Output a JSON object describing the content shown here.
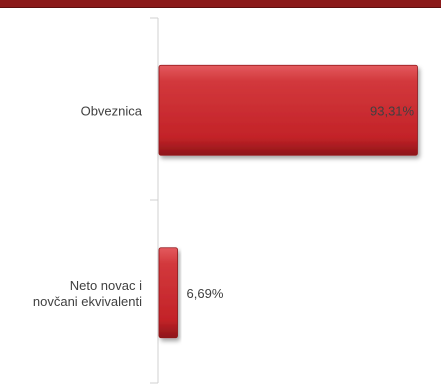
{
  "chart_data": {
    "type": "bar",
    "orientation": "horizontal",
    "categories": [
      "Obveznica",
      "Neto novac i\nnovčani ekvivalenti"
    ],
    "values": [
      93.31,
      6.69
    ],
    "value_labels": [
      "93,31%",
      "6,69%"
    ],
    "xlim": [
      0,
      100
    ],
    "grid": false,
    "legend": "none",
    "colors": {
      "bar": "#c8282d",
      "bar_light": "#e04a4e",
      "bar_dark": "#8e1519",
      "band": "#8b1a1a"
    }
  }
}
